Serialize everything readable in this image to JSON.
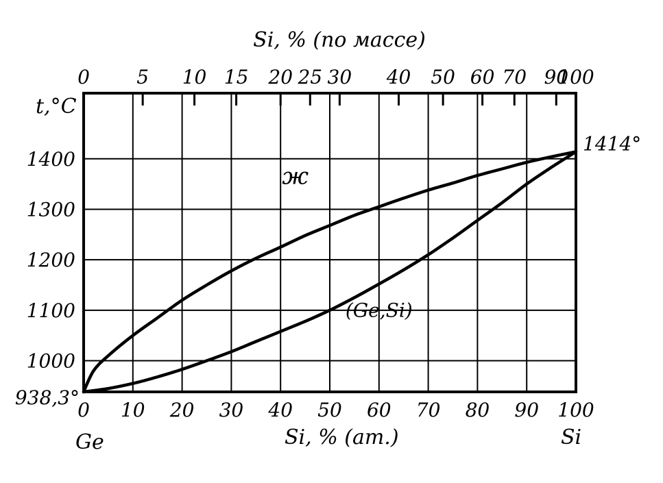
{
  "chart_data": {
    "type": "line",
    "title": "",
    "ylabel": "t,°C",
    "xlabel": "Si, % (ат.)",
    "x2label": "Si, % (по массе)",
    "xlim": [
      0,
      100
    ],
    "ylim": [
      938.3,
      1530
    ],
    "grid": true,
    "x_ticks": [
      "0",
      "10",
      "20",
      "30",
      "40",
      "50",
      "60",
      "70",
      "80",
      "90",
      "100"
    ],
    "x_tick_values": [
      0,
      10,
      20,
      30,
      40,
      50,
      60,
      70,
      80,
      90,
      100
    ],
    "y_ticks": [
      "1000",
      "1100",
      "1200",
      "1300",
      "1400"
    ],
    "y_tick_values": [
      1000,
      1100,
      1200,
      1300,
      1400
    ],
    "top_ticks": [
      "0",
      "5",
      "10",
      "15",
      "20",
      "25",
      "30",
      "40",
      "50",
      "60",
      "70",
      "90",
      "100"
    ],
    "top_tick_positions_at_pct": [
      0,
      12,
      22.5,
      31,
      40,
      46,
      52,
      64,
      73,
      81,
      87.5,
      96,
      100
    ],
    "end_left": "Ge",
    "end_right": "Si",
    "series": [
      {
        "key": "liquidus",
        "x": [
          0,
          2,
          5,
          10,
          15,
          20,
          25,
          30,
          35,
          40,
          45,
          50,
          55,
          60,
          65,
          70,
          75,
          80,
          85,
          90,
          95,
          100
        ],
        "y": [
          938.3,
          980,
          1010,
          1050,
          1085,
          1120,
          1150,
          1178,
          1203,
          1225,
          1248,
          1268,
          1288,
          1305,
          1322,
          1338,
          1352,
          1367,
          1380,
          1393,
          1404,
          1414
        ]
      },
      {
        "key": "solidus",
        "x": [
          0,
          5,
          10,
          15,
          20,
          25,
          30,
          35,
          40,
          45,
          50,
          55,
          60,
          65,
          70,
          75,
          80,
          85,
          90,
          95,
          100
        ],
        "y": [
          938.3,
          945,
          955,
          968,
          983,
          1000,
          1018,
          1038,
          1058,
          1078,
          1100,
          1125,
          1152,
          1180,
          1210,
          1243,
          1278,
          1313,
          1350,
          1383,
          1414
        ]
      }
    ],
    "annotations": [
      {
        "text": "938,3°",
        "x": 0,
        "y": 938.3
      },
      {
        "text": "1414°",
        "x": 100,
        "y": 1414
      },
      {
        "text": "ж",
        "x": 43,
        "y": 1350
      },
      {
        "text": "(Ge,Si)",
        "x": 60,
        "y": 1087
      }
    ]
  },
  "colors": {
    "ink": "#000000",
    "paper": "#ffffff"
  }
}
